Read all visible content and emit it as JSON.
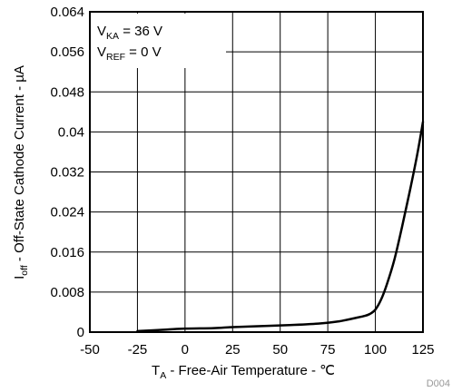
{
  "chart_data": {
    "type": "line",
    "xlabel": {
      "main": "T",
      "sub": "A",
      "rest": " - Free-Air Temperature - ℃"
    },
    "ylabel": {
      "main": "I",
      "sub": "off",
      "rest": " - Off-State Cathode Current - µA"
    },
    "xlim": [
      -50,
      125
    ],
    "ylim": [
      0,
      0.064
    ],
    "x_ticks": [
      -50,
      -25,
      0,
      25,
      50,
      75,
      100,
      125
    ],
    "y_ticks": [
      0,
      0.008,
      0.016,
      0.024,
      0.032,
      0.04,
      0.048,
      0.056,
      0.064
    ],
    "y_tick_labels": [
      "0",
      "0.008",
      "0.016",
      "0.024",
      "0.032",
      "0.04",
      "0.048",
      "0.056",
      "0.064"
    ],
    "grid": true,
    "annotation": {
      "line1_main": "V",
      "line1_sub": "KA",
      "line1_rest": " = 36 V",
      "line2_main": "V",
      "line2_sub": "REF",
      "line2_rest": " = 0 V"
    },
    "figure_code": "D004",
    "series": [
      {
        "color": "#000000",
        "x": [
          -25,
          -10,
          0,
          15,
          25,
          40,
          55,
          70,
          80,
          88,
          94,
          97,
          100,
          103,
          106,
          110,
          114,
          118,
          122,
          125
        ],
        "y": [
          0.0002,
          0.0005,
          0.0007,
          0.0008,
          0.001,
          0.0012,
          0.0014,
          0.0017,
          0.0021,
          0.0027,
          0.0032,
          0.0036,
          0.0045,
          0.0065,
          0.0095,
          0.0145,
          0.021,
          0.028,
          0.0355,
          0.042
        ]
      }
    ]
  }
}
